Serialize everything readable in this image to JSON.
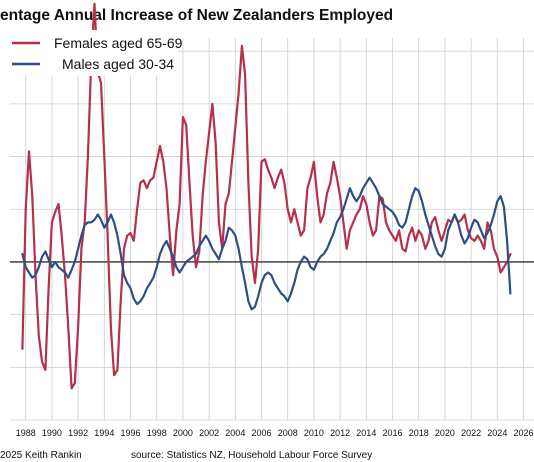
{
  "chart_data": {
    "type": "line",
    "title": "entage Annual Increase of New Zealanders Employed",
    "xlabel": "",
    "ylabel": "",
    "xlim": [
      1986.8,
      2026.8
    ],
    "ylim": [
      -6,
      8.5
    ],
    "grid": true,
    "legend_position": "top-left",
    "x_ticks": [
      1988,
      1990,
      1992,
      1994,
      1996,
      1998,
      2000,
      2002,
      2004,
      2006,
      2008,
      2010,
      2012,
      2014,
      2016,
      2018,
      2020,
      2022,
      2024,
      2026
    ],
    "x_tick_labels": [
      "1988",
      "1990",
      "1992",
      "1994",
      "1996",
      "1998",
      "2000",
      "2002",
      "2004",
      "2006",
      "2008",
      "2010",
      "2012",
      "2014",
      "2016",
      "2018",
      "2020",
      "2022",
      "2024",
      "2026"
    ],
    "y_gridlines": [
      -6,
      -4,
      -2,
      0,
      2,
      4,
      6,
      8
    ],
    "series": [
      {
        "name": "Females aged 65-69",
        "color": "#b5304a",
        "points": [
          [
            1987.75,
            -3.3
          ],
          [
            1988.0,
            2.0
          ],
          [
            1988.25,
            4.2
          ],
          [
            1988.5,
            2.5
          ],
          [
            1988.75,
            -0.5
          ],
          [
            1989.0,
            -2.8
          ],
          [
            1989.25,
            -3.8
          ],
          [
            1989.5,
            -4.1
          ],
          [
            1989.75,
            -1.0
          ],
          [
            1990.0,
            1.5
          ],
          [
            1990.25,
            1.9
          ],
          [
            1990.5,
            2.2
          ],
          [
            1990.75,
            1.0
          ],
          [
            1991.0,
            -0.5
          ],
          [
            1991.25,
            -2.5
          ],
          [
            1991.5,
            -4.8
          ],
          [
            1991.75,
            -4.6
          ],
          [
            1992.0,
            -2.5
          ],
          [
            1992.25,
            0.5
          ],
          [
            1992.5,
            1.5
          ],
          [
            1992.75,
            4.0
          ],
          [
            1993.0,
            7.6
          ],
          [
            1993.25,
            9.8
          ],
          [
            1993.5,
            7.2
          ],
          [
            1993.75,
            6.8
          ],
          [
            1994.0,
            4.0
          ],
          [
            1994.25,
            1.0
          ],
          [
            1994.5,
            -2.5
          ],
          [
            1994.75,
            -4.3
          ],
          [
            1995.0,
            -4.1
          ],
          [
            1995.25,
            -1.5
          ],
          [
            1995.5,
            0.5
          ],
          [
            1995.75,
            1.0
          ],
          [
            1996.0,
            1.1
          ],
          [
            1996.25,
            0.8
          ],
          [
            1996.5,
            2.0
          ],
          [
            1996.75,
            3.0
          ],
          [
            1997.0,
            3.1
          ],
          [
            1997.25,
            2.8
          ],
          [
            1997.5,
            3.1
          ],
          [
            1997.75,
            3.2
          ],
          [
            1998.0,
            3.8
          ],
          [
            1998.25,
            4.4
          ],
          [
            1998.5,
            3.8
          ],
          [
            1998.75,
            2.8
          ],
          [
            1999.0,
            1.0
          ],
          [
            1999.25,
            -0.5
          ],
          [
            1999.5,
            1.2
          ],
          [
            1999.75,
            2.2
          ],
          [
            2000.0,
            5.5
          ],
          [
            2000.25,
            5.2
          ],
          [
            2000.5,
            3.0
          ],
          [
            2000.75,
            1.0
          ],
          [
            2001.0,
            -0.2
          ],
          [
            2001.25,
            0.4
          ],
          [
            2001.5,
            2.5
          ],
          [
            2001.75,
            3.8
          ],
          [
            2002.0,
            4.9
          ],
          [
            2002.25,
            6.0
          ],
          [
            2002.5,
            4.5
          ],
          [
            2002.75,
            1.5
          ],
          [
            2003.0,
            0.5
          ],
          [
            2003.25,
            2.2
          ],
          [
            2003.5,
            2.6
          ],
          [
            2003.75,
            3.8
          ],
          [
            2004.0,
            5.1
          ],
          [
            2004.25,
            6.4
          ],
          [
            2004.5,
            8.2
          ],
          [
            2004.75,
            7.1
          ],
          [
            2005.0,
            3.0
          ],
          [
            2005.25,
            0.2
          ],
          [
            2005.5,
            -0.8
          ],
          [
            2005.75,
            0.5
          ],
          [
            2006.0,
            3.8
          ],
          [
            2006.25,
            3.9
          ],
          [
            2006.5,
            3.5
          ],
          [
            2006.75,
            3.2
          ],
          [
            2007.0,
            2.8
          ],
          [
            2007.25,
            3.2
          ],
          [
            2007.5,
            3.5
          ],
          [
            2007.75,
            3.0
          ],
          [
            2008.0,
            2.0
          ],
          [
            2008.25,
            1.5
          ],
          [
            2008.5,
            2.0
          ],
          [
            2008.75,
            1.5
          ],
          [
            2009.0,
            1.0
          ],
          [
            2009.25,
            1.2
          ],
          [
            2009.5,
            2.8
          ],
          [
            2009.75,
            3.2
          ],
          [
            2010.0,
            3.8
          ],
          [
            2010.25,
            2.5
          ],
          [
            2010.5,
            1.5
          ],
          [
            2010.75,
            1.8
          ],
          [
            2011.0,
            2.6
          ],
          [
            2011.25,
            3.0
          ],
          [
            2011.5,
            3.8
          ],
          [
            2011.75,
            3.2
          ],
          [
            2012.0,
            2.5
          ],
          [
            2012.25,
            1.5
          ],
          [
            2012.5,
            0.5
          ],
          [
            2012.75,
            1.2
          ],
          [
            2013.0,
            1.5
          ],
          [
            2013.25,
            1.8
          ],
          [
            2013.5,
            2.0
          ],
          [
            2013.75,
            2.5
          ],
          [
            2014.0,
            2.2
          ],
          [
            2014.25,
            1.5
          ],
          [
            2014.5,
            1.0
          ],
          [
            2014.75,
            1.2
          ],
          [
            2015.0,
            2.5
          ],
          [
            2015.25,
            2.4
          ],
          [
            2015.5,
            1.5
          ],
          [
            2015.75,
            1.2
          ],
          [
            2016.0,
            1.0
          ],
          [
            2016.25,
            0.8
          ],
          [
            2016.5,
            1.2
          ],
          [
            2016.75,
            0.5
          ],
          [
            2017.0,
            0.4
          ],
          [
            2017.25,
            1.0
          ],
          [
            2017.5,
            1.3
          ],
          [
            2017.75,
            0.8
          ],
          [
            2018.0,
            1.2
          ],
          [
            2018.25,
            1.0
          ],
          [
            2018.5,
            0.5
          ],
          [
            2018.75,
            0.8
          ],
          [
            2019.0,
            1.5
          ],
          [
            2019.25,
            1.7
          ],
          [
            2019.5,
            1.2
          ],
          [
            2019.75,
            0.8
          ],
          [
            2020.0,
            1.2
          ],
          [
            2020.25,
            1.6
          ],
          [
            2020.5,
            1.5
          ],
          [
            2020.75,
            1.8
          ],
          [
            2021.0,
            1.5
          ],
          [
            2021.25,
            1.6
          ],
          [
            2021.5,
            1.8
          ],
          [
            2021.75,
            1.2
          ],
          [
            2022.0,
            0.9
          ],
          [
            2022.25,
            0.8
          ],
          [
            2022.5,
            1.0
          ],
          [
            2022.75,
            0.8
          ],
          [
            2023.0,
            0.5
          ],
          [
            2023.25,
            1.5
          ],
          [
            2023.5,
            1.2
          ],
          [
            2023.75,
            0.5
          ],
          [
            2024.0,
            0.2
          ],
          [
            2024.25,
            -0.4
          ],
          [
            2024.5,
            -0.2
          ],
          [
            2024.75,
            0.0
          ],
          [
            2025.0,
            0.3
          ]
        ]
      },
      {
        "name": "Males aged 30-34",
        "color": "#2e4f86",
        "points": [
          [
            1987.75,
            0.3
          ],
          [
            1988.0,
            -0.2
          ],
          [
            1988.25,
            -0.4
          ],
          [
            1988.5,
            -0.6
          ],
          [
            1988.75,
            -0.5
          ],
          [
            1989.0,
            -0.2
          ],
          [
            1989.25,
            0.2
          ],
          [
            1989.5,
            0.4
          ],
          [
            1989.75,
            0.1
          ],
          [
            1990.0,
            -0.2
          ],
          [
            1990.25,
            0.0
          ],
          [
            1990.5,
            -0.2
          ],
          [
            1990.75,
            -0.3
          ],
          [
            1991.0,
            -0.4
          ],
          [
            1991.25,
            -0.6
          ],
          [
            1991.5,
            -0.3
          ],
          [
            1991.75,
            0.0
          ],
          [
            1992.0,
            0.5
          ],
          [
            1992.25,
            1.0
          ],
          [
            1992.5,
            1.4
          ],
          [
            1992.75,
            1.5
          ],
          [
            1993.0,
            1.5
          ],
          [
            1993.25,
            1.6
          ],
          [
            1993.5,
            1.8
          ],
          [
            1993.75,
            1.6
          ],
          [
            1994.0,
            1.3
          ],
          [
            1994.25,
            1.5
          ],
          [
            1994.5,
            1.8
          ],
          [
            1994.75,
            1.5
          ],
          [
            1995.0,
            1.0
          ],
          [
            1995.25,
            0.3
          ],
          [
            1995.5,
            -0.5
          ],
          [
            1995.75,
            -0.8
          ],
          [
            1996.0,
            -1.0
          ],
          [
            1996.25,
            -1.4
          ],
          [
            1996.5,
            -1.6
          ],
          [
            1996.75,
            -1.5
          ],
          [
            1997.0,
            -1.3
          ],
          [
            1997.25,
            -1.0
          ],
          [
            1997.5,
            -0.8
          ],
          [
            1997.75,
            -0.6
          ],
          [
            1998.0,
            -0.2
          ],
          [
            1998.25,
            0.3
          ],
          [
            1998.5,
            0.6
          ],
          [
            1998.75,
            0.8
          ],
          [
            1999.0,
            0.5
          ],
          [
            1999.25,
            0.2
          ],
          [
            1999.5,
            -0.2
          ],
          [
            1999.75,
            -0.4
          ],
          [
            2000.0,
            -0.2
          ],
          [
            2000.25,
            0.0
          ],
          [
            2000.5,
            0.1
          ],
          [
            2000.75,
            0.2
          ],
          [
            2001.0,
            0.3
          ],
          [
            2001.25,
            0.6
          ],
          [
            2001.5,
            0.8
          ],
          [
            2001.75,
            1.0
          ],
          [
            2002.0,
            0.8
          ],
          [
            2002.25,
            0.5
          ],
          [
            2002.5,
            0.3
          ],
          [
            2002.75,
            0.1
          ],
          [
            2003.0,
            0.5
          ],
          [
            2003.25,
            0.8
          ],
          [
            2003.5,
            1.3
          ],
          [
            2003.75,
            1.2
          ],
          [
            2004.0,
            1.0
          ],
          [
            2004.25,
            0.5
          ],
          [
            2004.5,
            -0.2
          ],
          [
            2004.75,
            -0.8
          ],
          [
            2005.0,
            -1.5
          ],
          [
            2005.25,
            -1.8
          ],
          [
            2005.5,
            -1.7
          ],
          [
            2005.75,
            -1.3
          ],
          [
            2006.0,
            -0.8
          ],
          [
            2006.25,
            -0.5
          ],
          [
            2006.5,
            -0.4
          ],
          [
            2006.75,
            -0.5
          ],
          [
            2007.0,
            -0.8
          ],
          [
            2007.25,
            -1.0
          ],
          [
            2007.5,
            -1.2
          ],
          [
            2007.75,
            -1.3
          ],
          [
            2008.0,
            -1.5
          ],
          [
            2008.25,
            -1.2
          ],
          [
            2008.5,
            -0.8
          ],
          [
            2008.75,
            -0.3
          ],
          [
            2009.0,
            0.0
          ],
          [
            2009.25,
            0.2
          ],
          [
            2009.5,
            0.1
          ],
          [
            2009.75,
            -0.2
          ],
          [
            2010.0,
            -0.3
          ],
          [
            2010.25,
            0.0
          ],
          [
            2010.5,
            0.2
          ],
          [
            2010.75,
            0.3
          ],
          [
            2011.0,
            0.5
          ],
          [
            2011.25,
            0.8
          ],
          [
            2011.5,
            1.1
          ],
          [
            2011.75,
            1.5
          ],
          [
            2012.0,
            1.7
          ],
          [
            2012.25,
            2.0
          ],
          [
            2012.5,
            2.4
          ],
          [
            2012.75,
            2.8
          ],
          [
            2013.0,
            2.5
          ],
          [
            2013.25,
            2.3
          ],
          [
            2013.5,
            2.5
          ],
          [
            2013.75,
            2.8
          ],
          [
            2014.0,
            3.0
          ],
          [
            2014.25,
            3.2
          ],
          [
            2014.5,
            3.0
          ],
          [
            2014.75,
            2.8
          ],
          [
            2015.0,
            2.5
          ],
          [
            2015.25,
            2.2
          ],
          [
            2015.5,
            2.1
          ],
          [
            2015.75,
            2.0
          ],
          [
            2016.0,
            1.9
          ],
          [
            2016.25,
            1.7
          ],
          [
            2016.5,
            1.4
          ],
          [
            2016.75,
            1.3
          ],
          [
            2017.0,
            1.5
          ],
          [
            2017.25,
            2.0
          ],
          [
            2017.5,
            2.5
          ],
          [
            2017.75,
            2.8
          ],
          [
            2018.0,
            2.7
          ],
          [
            2018.25,
            2.3
          ],
          [
            2018.5,
            1.8
          ],
          [
            2018.75,
            1.4
          ],
          [
            2019.0,
            1.0
          ],
          [
            2019.25,
            0.6
          ],
          [
            2019.5,
            0.3
          ],
          [
            2019.75,
            0.2
          ],
          [
            2020.0,
            0.5
          ],
          [
            2020.25,
            1.2
          ],
          [
            2020.5,
            1.5
          ],
          [
            2020.75,
            1.8
          ],
          [
            2021.0,
            1.5
          ],
          [
            2021.25,
            1.0
          ],
          [
            2021.5,
            0.7
          ],
          [
            2021.75,
            0.9
          ],
          [
            2022.0,
            1.3
          ],
          [
            2022.25,
            1.6
          ],
          [
            2022.5,
            1.5
          ],
          [
            2022.75,
            1.2
          ],
          [
            2023.0,
            0.9
          ],
          [
            2023.25,
            1.1
          ],
          [
            2023.5,
            1.4
          ],
          [
            2023.75,
            1.8
          ],
          [
            2024.0,
            2.3
          ],
          [
            2024.25,
            2.5
          ],
          [
            2024.5,
            2.1
          ],
          [
            2024.75,
            0.8
          ],
          [
            2025.0,
            -1.2
          ]
        ]
      }
    ],
    "source_left": "2025 Keith Rankin",
    "source_right": "source: Statistics NZ, Household Labour Force Survey"
  }
}
